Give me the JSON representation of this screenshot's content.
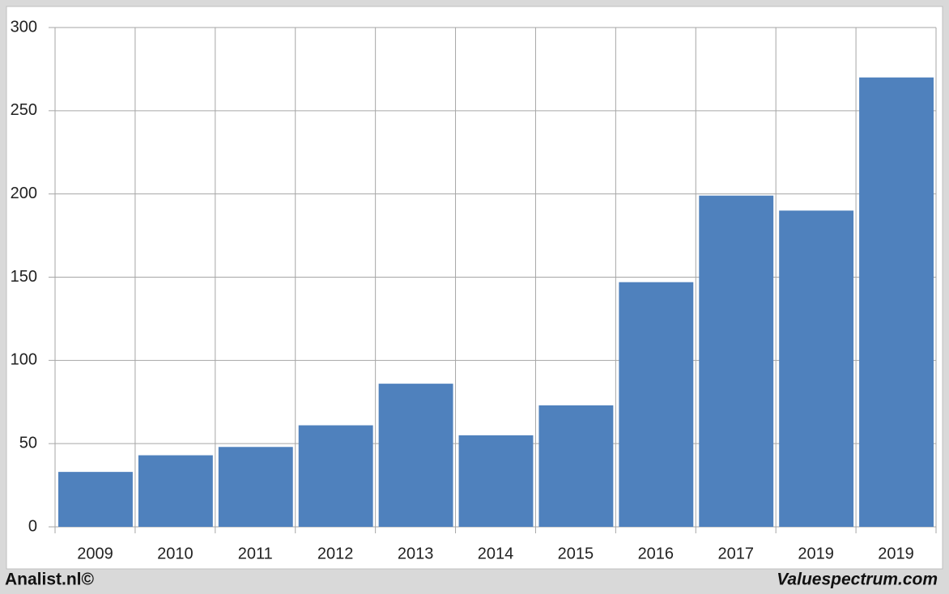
{
  "chart_data": {
    "type": "bar",
    "categories": [
      "2009",
      "2010",
      "2011",
      "2012",
      "2013",
      "2014",
      "2015",
      "2016",
      "2017",
      "2019",
      "2019"
    ],
    "values": [
      33,
      43,
      48,
      61,
      86,
      55,
      73,
      147,
      199,
      190,
      270
    ],
    "color": "#4f81bd",
    "ylim": [
      0,
      300
    ],
    "yticks": [
      0,
      50,
      100,
      150,
      200,
      250,
      300
    ],
    "grid": true,
    "source_left": "Analist.nl©",
    "source_right": "Valuespectrum.com"
  }
}
